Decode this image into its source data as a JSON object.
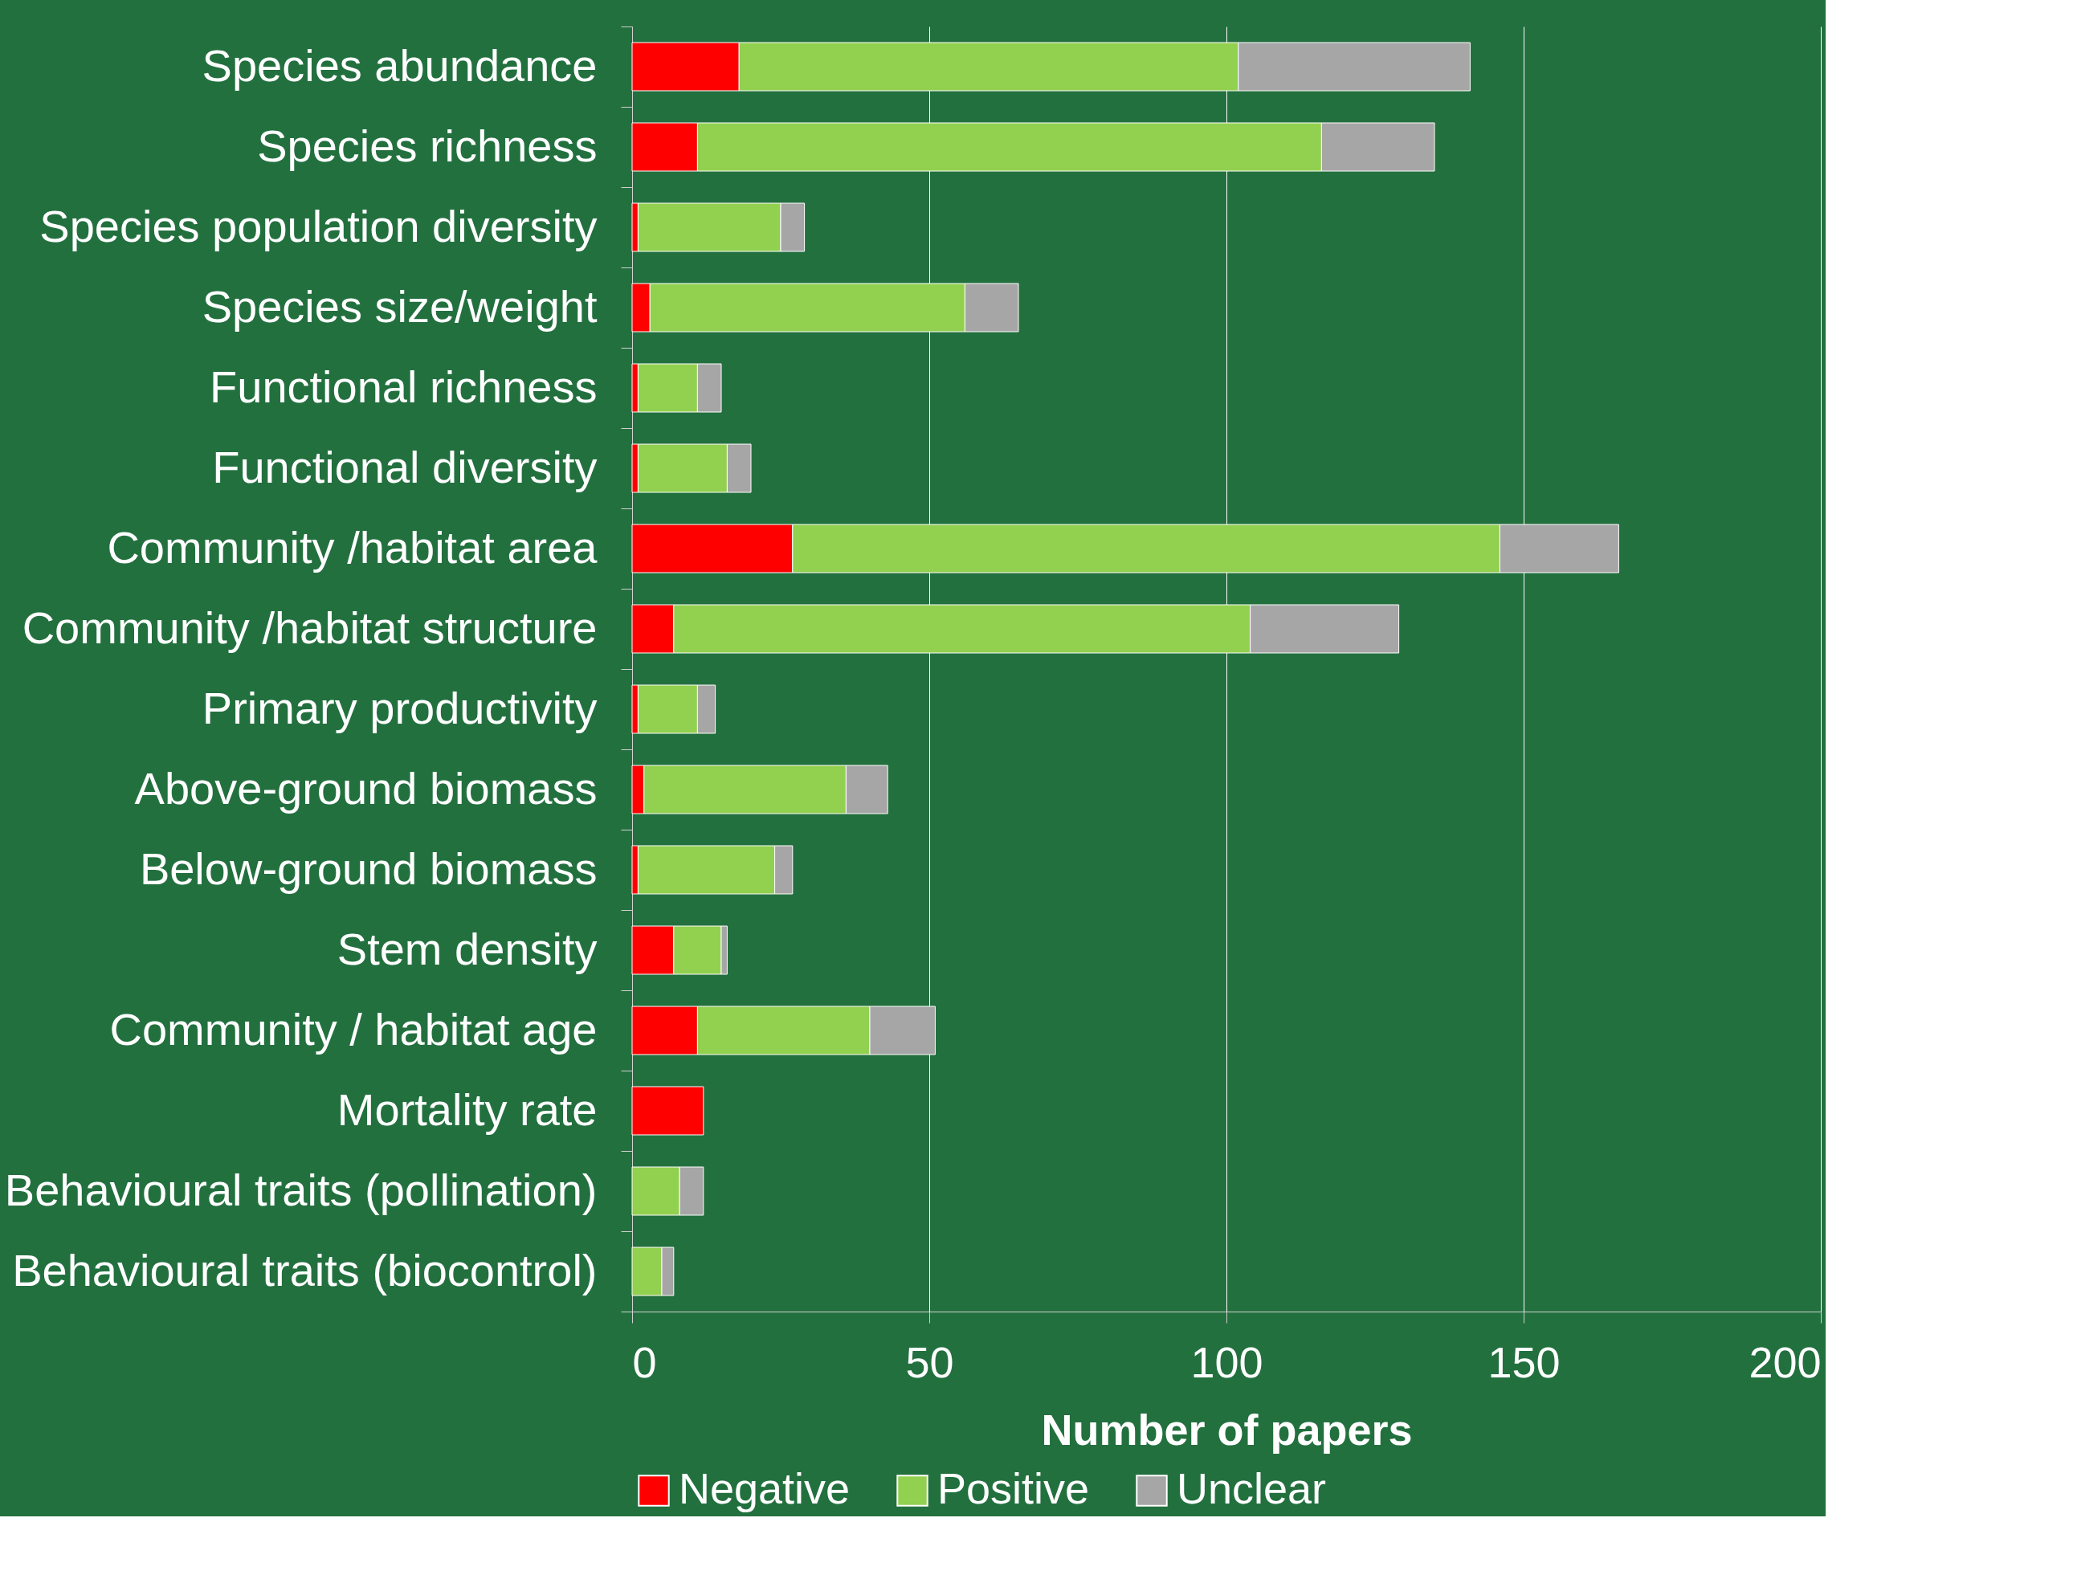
{
  "chart_data": {
    "type": "bar",
    "orientation": "horizontal",
    "stacked": true,
    "xlabel": "Number of papers",
    "categories": [
      "Species abundance",
      "Species richness",
      "Species population diversity",
      "Species size/weight",
      "Functional richness",
      "Functional diversity",
      "Community /habitat area",
      "Community /habitat structure",
      "Primary productivity",
      "Above-ground biomass",
      "Below-ground biomass",
      "Stem density",
      "Community / habitat age",
      "Mortality rate",
      "Behavioural traits (pollination)",
      "Behavioural traits (biocontrol)"
    ],
    "series": [
      {
        "name": "Negative",
        "color": "#ff0000",
        "values": [
          18,
          11,
          1,
          3,
          1,
          1,
          27,
          7,
          1,
          2,
          1,
          7,
          11,
          12,
          0,
          0
        ]
      },
      {
        "name": "Positive",
        "color": "#92d050",
        "values": [
          84,
          105,
          24,
          53,
          10,
          15,
          119,
          97,
          10,
          34,
          23,
          8,
          29,
          0,
          8,
          5
        ]
      },
      {
        "name": "Unclear",
        "color": "#a6a6a6",
        "values": [
          39,
          19,
          4,
          9,
          4,
          4,
          20,
          25,
          3,
          7,
          3,
          1,
          11,
          0,
          4,
          2
        ]
      }
    ],
    "xlim": [
      0,
      200
    ],
    "xticks": [
      0,
      50,
      100,
      150,
      200
    ],
    "grid": "x",
    "legend": "bottom"
  }
}
